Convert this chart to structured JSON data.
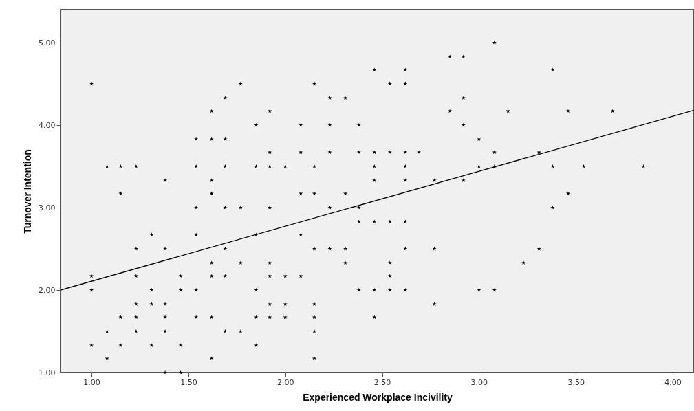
{
  "chart_data": {
    "type": "scatter",
    "xlabel": "Experienced Workplace Incivility",
    "ylabel": "Turnover Intention",
    "xlim": [
      0.84,
      4.11
    ],
    "ylim": [
      1.0,
      5.4
    ],
    "xticks": [
      {
        "value": 1,
        "label": "1.00"
      },
      {
        "value": 1.5,
        "label": "1.50"
      },
      {
        "value": 2,
        "label": "2.00"
      },
      {
        "value": 2.5,
        "label": "2.50"
      },
      {
        "value": 3,
        "label": "3.00"
      },
      {
        "value": 3.5,
        "label": "3.50"
      },
      {
        "value": 4,
        "label": "4.00"
      }
    ],
    "yticks": [
      {
        "value": 1,
        "label": "1.00"
      },
      {
        "value": 2,
        "label": "2.00"
      },
      {
        "value": 3,
        "label": "3.00"
      },
      {
        "value": 4,
        "label": "4.00"
      },
      {
        "value": 5,
        "label": "5.00"
      }
    ],
    "grid": false,
    "marker": "star",
    "series": [
      {
        "color": "#000000",
        "x": [
          1.0,
          1.0,
          1.0,
          1.0,
          1.08,
          1.08,
          1.08,
          1.15,
          1.15,
          1.15,
          1.15,
          1.23,
          1.23,
          1.23,
          1.23,
          1.23,
          1.23,
          1.31,
          1.31,
          1.31,
          1.31,
          1.38,
          1.38,
          1.38,
          1.38,
          1.38,
          1.38,
          1.46,
          1.46,
          1.46,
          1.46,
          1.54,
          1.54,
          1.54,
          1.54,
          1.54,
          1.54,
          1.62,
          1.62,
          1.62,
          1.62,
          1.62,
          1.62,
          1.62,
          1.62,
          1.69,
          1.69,
          1.69,
          1.69,
          1.69,
          1.69,
          1.69,
          1.77,
          1.77,
          1.77,
          1.77,
          1.85,
          1.85,
          1.85,
          1.85,
          1.85,
          1.85,
          1.92,
          1.92,
          1.92,
          1.92,
          1.92,
          1.92,
          1.92,
          1.92,
          2.0,
          2.0,
          2.0,
          2.0,
          2.08,
          2.08,
          2.08,
          2.08,
          2.08,
          2.15,
          2.15,
          2.15,
          2.15,
          2.15,
          2.15,
          2.15,
          2.15,
          2.23,
          2.23,
          2.23,
          2.23,
          2.23,
          2.31,
          2.31,
          2.31,
          2.31,
          2.38,
          2.38,
          2.38,
          2.38,
          2.38,
          2.46,
          2.46,
          2.46,
          2.46,
          2.46,
          2.46,
          2.46,
          2.54,
          2.54,
          2.54,
          2.54,
          2.54,
          2.54,
          2.62,
          2.62,
          2.62,
          2.62,
          2.62,
          2.62,
          2.62,
          2.62,
          2.69,
          2.77,
          2.77,
          2.77,
          2.85,
          2.85,
          2.92,
          2.92,
          2.92,
          2.92,
          3.0,
          3.0,
          3.0,
          3.08,
          3.08,
          3.08,
          3.08,
          3.15,
          3.23,
          3.31,
          3.31,
          3.38,
          3.38,
          3.38,
          3.46,
          3.46,
          3.54,
          3.69,
          3.85
        ],
        "values": [
          4.5,
          2.17,
          2.0,
          1.33,
          3.5,
          1.5,
          1.17,
          3.5,
          3.17,
          1.67,
          1.33,
          3.5,
          2.5,
          2.17,
          1.83,
          1.67,
          1.5,
          2.67,
          2.0,
          1.83,
          1.33,
          3.33,
          2.5,
          1.83,
          1.67,
          1.5,
          1.0,
          2.17,
          2.0,
          1.33,
          1.0,
          3.83,
          3.5,
          3.0,
          2.67,
          2.0,
          1.67,
          4.17,
          3.83,
          3.33,
          3.17,
          2.33,
          2.17,
          1.67,
          1.17,
          4.33,
          3.83,
          3.5,
          3.0,
          2.5,
          2.17,
          1.5,
          4.5,
          3.0,
          2.33,
          1.5,
          4.0,
          3.5,
          2.67,
          2.0,
          1.67,
          1.33,
          4.17,
          3.67,
          3.5,
          3.0,
          2.33,
          2.17,
          1.83,
          1.67,
          3.5,
          2.17,
          1.83,
          1.67,
          4.0,
          3.67,
          3.17,
          2.67,
          2.17,
          4.5,
          3.5,
          3.17,
          2.5,
          1.83,
          1.67,
          1.5,
          1.17,
          4.33,
          4.0,
          3.67,
          3.0,
          2.5,
          4.33,
          3.17,
          2.5,
          2.33,
          4.0,
          3.67,
          3.0,
          2.83,
          2.0,
          4.67,
          3.67,
          3.5,
          3.33,
          2.83,
          2.0,
          1.67,
          4.5,
          3.67,
          2.83,
          2.33,
          2.17,
          2.0,
          4.67,
          4.5,
          3.67,
          3.5,
          3.33,
          2.83,
          2.5,
          2.0,
          3.67,
          3.33,
          2.5,
          1.83,
          4.83,
          4.17,
          4.83,
          4.33,
          4.0,
          3.33,
          3.83,
          3.5,
          2.0,
          5.0,
          3.67,
          3.5,
          2.0,
          4.17,
          2.33,
          3.67,
          2.5,
          4.67,
          3.5,
          3.0,
          4.17,
          3.17,
          3.5,
          4.17,
          3.5
        ]
      },
      {
        "type": "line",
        "marker": "none",
        "color": "#000000",
        "x": [
          0.84,
          4.11
        ],
        "values": [
          2.0,
          4.18
        ]
      }
    ]
  }
}
